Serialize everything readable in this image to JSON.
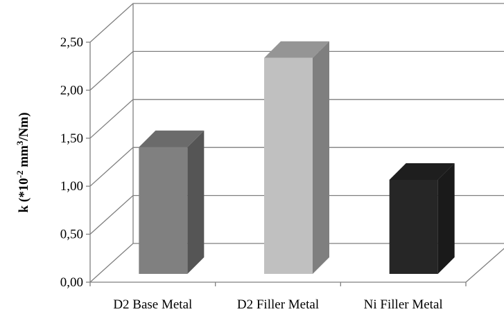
{
  "chart_data": {
    "type": "bar",
    "categories": [
      "D2 Base Metal",
      "D2 Filler Metal",
      "Ni Filler Metal"
    ],
    "values": [
      1.32,
      2.25,
      0.98
    ],
    "ylabel_parts": {
      "pre": "k (*10",
      "exp1": "-2",
      "mid": " mm",
      "exp2": "3",
      "post": "/Nm)"
    },
    "ylim": [
      0,
      2.5
    ],
    "yticks": [
      "0,00",
      "0,50",
      "1,00",
      "1,50",
      "2,00",
      "2,50"
    ],
    "grid": true,
    "legend": "none",
    "colors": {
      "bars": [
        {
          "front": "#808080",
          "side": "#555555",
          "top": "#6b6b6b"
        },
        {
          "front": "#c0c0c0",
          "side": "#7f7f7f",
          "top": "#959595"
        },
        {
          "front": "#262626",
          "side": "#1a1a1a",
          "top": "#1e1e1e"
        }
      ],
      "grid": "#7f7f7f"
    }
  }
}
